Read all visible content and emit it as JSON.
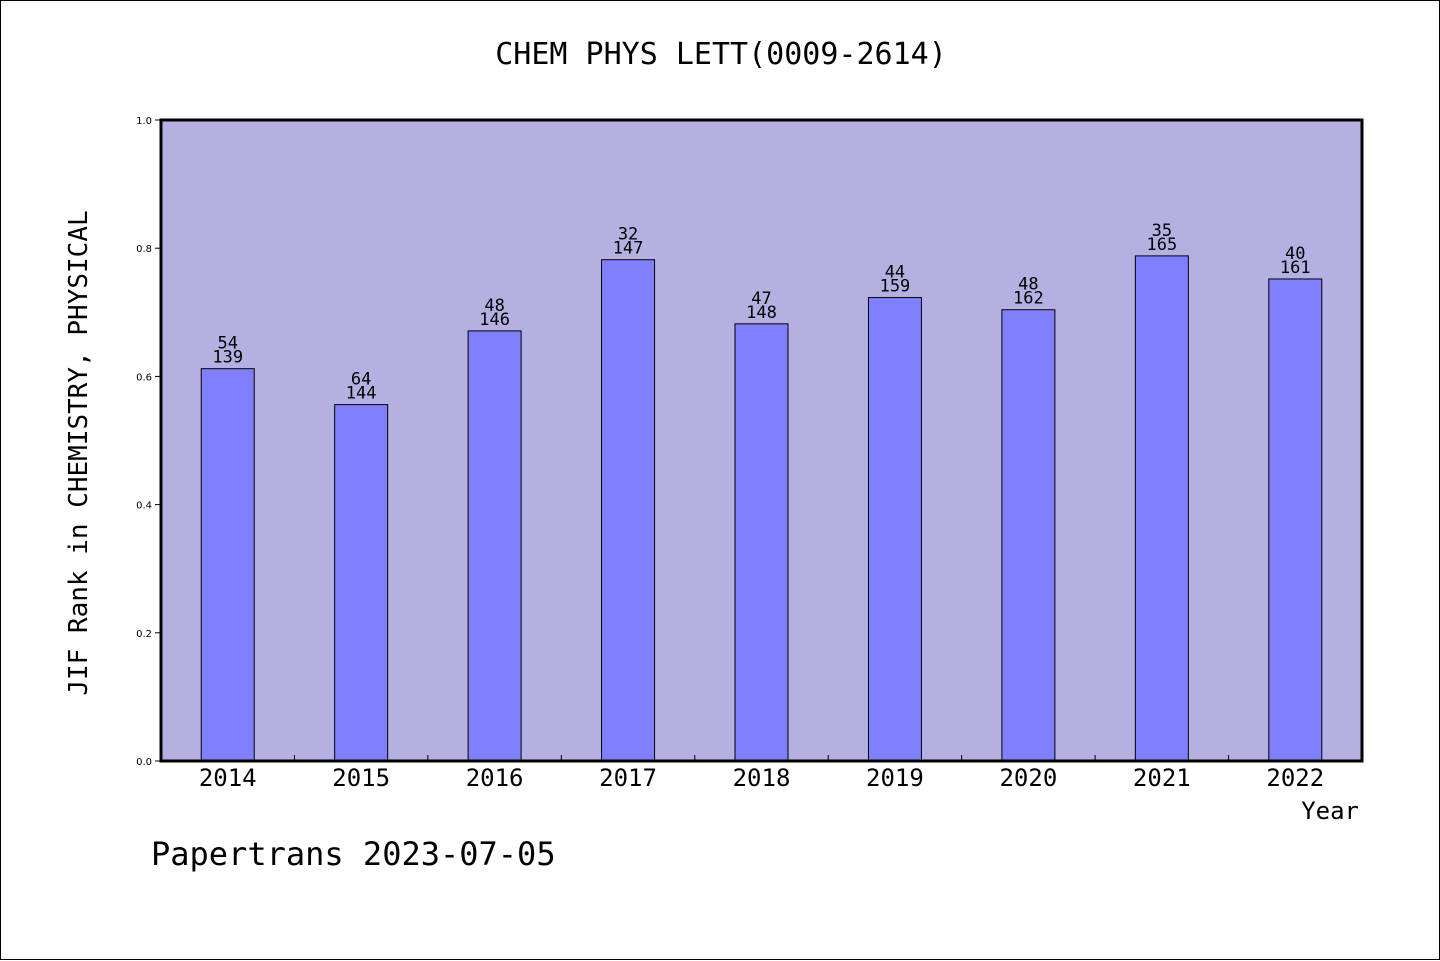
{
  "colors": {
    "plot_bg": "#b5b0e2",
    "bar": "#8080ff",
    "axis": "#000000"
  },
  "footer": {
    "text": "Papertrans 2023-07-05"
  },
  "chart_data": {
    "type": "bar",
    "title": "CHEM PHYS LETT(0009-2614)",
    "xlabel": "Year",
    "ylabel": "JIF Rank in CHEMISTRY, PHYSICAL",
    "ylim": [
      0,
      1.0
    ],
    "yticks": [
      "0.0",
      "0.2",
      "0.4",
      "0.6",
      "0.8",
      "1.0"
    ],
    "grid": false,
    "categories": [
      "2014",
      "2015",
      "2016",
      "2017",
      "2018",
      "2019",
      "2020",
      "2021",
      "2022"
    ],
    "values": [
      0.612,
      0.556,
      0.671,
      0.782,
      0.682,
      0.723,
      0.704,
      0.788,
      0.752
    ],
    "rank_labels": [
      "54",
      "64",
      "48",
      "32",
      "47",
      "44",
      "48",
      "35",
      "40"
    ],
    "total_labels": [
      "139",
      "144",
      "146",
      "147",
      "148",
      "159",
      "162",
      "165",
      "161"
    ]
  }
}
